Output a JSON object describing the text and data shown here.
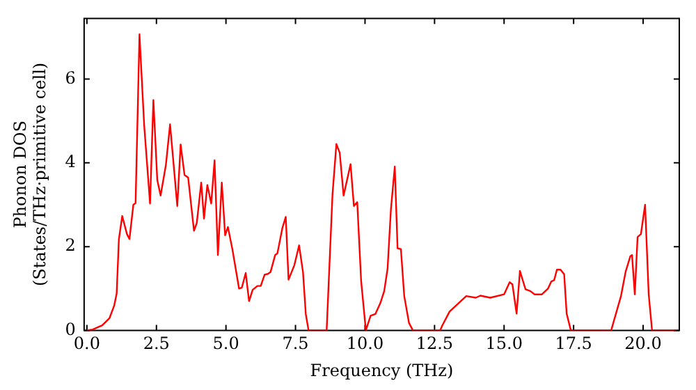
{
  "chart_data": {
    "type": "line",
    "xlabel": "Frequency (THz)",
    "ylabel": "Phonon DOS\n(States/THz·primitive cell)",
    "xlim": [
      -0.1,
      21.3
    ],
    "ylim": [
      0,
      7.45
    ],
    "xticks": [
      {
        "value": 0,
        "label": "0.0"
      },
      {
        "value": 2.5,
        "label": "2.5"
      },
      {
        "value": 5,
        "label": "5.0"
      },
      {
        "value": 7.5,
        "label": "7.5"
      },
      {
        "value": 10,
        "label": "10.0"
      },
      {
        "value": 12.5,
        "label": "12.5"
      },
      {
        "value": 15,
        "label": "15.0"
      },
      {
        "value": 17.5,
        "label": "17.5"
      },
      {
        "value": 20,
        "label": "20.0"
      }
    ],
    "yticks": [
      0,
      2,
      4,
      6
    ],
    "legend": false,
    "marker": "none",
    "line_style": "solid",
    "series": [
      {
        "color": "#ff0000",
        "x": [
          0,
          0.21,
          0.55,
          0.81,
          0.98,
          1.07,
          1.15,
          1.27,
          1.44,
          1.53,
          1.67,
          1.75,
          1.89,
          2.06,
          2.27,
          2.39,
          2.53,
          2.65,
          2.84,
          2.99,
          3.25,
          3.37,
          3.51,
          3.64,
          3.85,
          3.95,
          4.11,
          4.21,
          4.33,
          4.47,
          4.59,
          4.71,
          4.85,
          4.97,
          5.07,
          5.23,
          5.47,
          5.57,
          5.71,
          5.83,
          5.96,
          6.13,
          6.25,
          6.39,
          6.51,
          6.6,
          6.77,
          6.85,
          7.03,
          7.15,
          7.25,
          7.46,
          7.63,
          7.77,
          7.87,
          7.97,
          8.62,
          8.83,
          8.97,
          9.09,
          9.23,
          9.48,
          9.6,
          9.72,
          9.86,
          10.03,
          10.2,
          10.37,
          10.55,
          10.69,
          10.81,
          10.93,
          11.07,
          11.17,
          11.29,
          11.41,
          11.58,
          11.72,
          12.7,
          12.78,
          13.04,
          13.64,
          13.98,
          14.15,
          14.5,
          15.0,
          15.2,
          15.3,
          15.45,
          15.57,
          15.77,
          15.94,
          16.1,
          16.36,
          16.58,
          16.7,
          16.8,
          16.9,
          17.03,
          17.16,
          17.25,
          17.4,
          18.85,
          19.2,
          19.37,
          19.54,
          19.6,
          19.7,
          19.8,
          19.92,
          20.07,
          20.2,
          20.32,
          21.2
        ],
        "values": [
          0,
          0.02,
          0.12,
          0.29,
          0.59,
          0.88,
          2.18,
          2.73,
          2.3,
          2.18,
          3.0,
          3.04,
          7.07,
          4.89,
          3.03,
          5.5,
          3.59,
          3.22,
          3.95,
          4.92,
          2.97,
          4.44,
          3.71,
          3.65,
          2.38,
          2.56,
          3.53,
          2.67,
          3.47,
          3.03,
          4.06,
          1.8,
          3.53,
          2.27,
          2.47,
          1.94,
          1.0,
          1.02,
          1.37,
          0.7,
          0.97,
          1.06,
          1.06,
          1.33,
          1.35,
          1.39,
          1.8,
          1.84,
          2.45,
          2.71,
          1.21,
          1.56,
          2.03,
          1.39,
          0.39,
          0,
          0,
          3.24,
          4.45,
          4.24,
          3.22,
          3.97,
          2.97,
          3.06,
          1.18,
          0,
          0.35,
          0.39,
          0.65,
          0.94,
          1.47,
          2.88,
          3.91,
          1.96,
          1.94,
          0.82,
          0.18,
          0,
          0,
          0.12,
          0.45,
          0.82,
          0.78,
          0.83,
          0.78,
          0.86,
          1.15,
          1.1,
          0.4,
          1.42,
          0.98,
          0.94,
          0.86,
          0.86,
          1.0,
          1.17,
          1.2,
          1.45,
          1.45,
          1.34,
          0.4,
          0,
          0,
          0.81,
          1.4,
          1.77,
          1.8,
          0.86,
          2.23,
          2.3,
          3.0,
          0.86,
          0,
          0
        ]
      }
    ]
  }
}
